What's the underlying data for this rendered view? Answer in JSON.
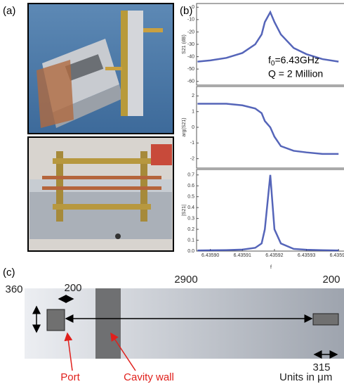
{
  "panel_a": {
    "label": "(a)"
  },
  "panel_b": {
    "label": "(b)",
    "annotation": {
      "base": "f",
      "sub": "0",
      "rest": "=6.43GHz"
    },
    "q_text": "Q = 2 Million",
    "xlabel": "f"
  },
  "chart_data": [
    {
      "type": "line",
      "ylabel": "S21 (dB)",
      "color": "#2a3fa8",
      "x": [
        6.435896,
        6.4359,
        6.435905,
        6.43591,
        6.435914,
        6.435916,
        6.435917,
        6.4359187,
        6.43592,
        6.435922,
        6.435926,
        6.43593,
        6.435935,
        6.43594
      ],
      "values": [
        -44,
        -43,
        -41,
        -37,
        -30,
        -22,
        -12,
        -4,
        -12,
        -22,
        -33,
        -38,
        -42,
        -44
      ],
      "xlim": [
        6.4358957,
        6.4359417
      ],
      "ylim": [
        -63,
        3
      ],
      "yticks": [
        0,
        -10,
        -20,
        -30,
        -40,
        -50,
        -60
      ]
    },
    {
      "type": "line",
      "ylabel": "arg(S21)",
      "color": "#2a3fa8",
      "x": [
        6.435896,
        6.4359,
        6.435905,
        6.43591,
        6.435914,
        6.435916,
        6.435917,
        6.4359187,
        6.43592,
        6.435922,
        6.435926,
        6.43593,
        6.435935,
        6.43594
      ],
      "values": [
        1.5,
        1.5,
        1.5,
        1.4,
        1.2,
        0.9,
        0.4,
        0,
        -0.6,
        -1.2,
        -1.5,
        -1.6,
        -1.7,
        -1.7
      ],
      "xlim": [
        6.4358957,
        6.4359417
      ],
      "ylim": [
        -2.6,
        2.6
      ],
      "yticks": [
        2,
        1,
        0,
        -1,
        -2
      ]
    },
    {
      "type": "line",
      "ylabel": "|S21|",
      "color": "#2a3fa8",
      "x": [
        6.435896,
        6.4359,
        6.435905,
        6.43591,
        6.435914,
        6.435916,
        6.435917,
        6.4359187,
        6.43592,
        6.435922,
        6.435926,
        6.43593,
        6.435935,
        6.43594
      ],
      "values": [
        0.006,
        0.007,
        0.009,
        0.014,
        0.03,
        0.07,
        0.2,
        0.7,
        0.2,
        0.07,
        0.02,
        0.012,
        0.008,
        0.006
      ],
      "xlim": [
        6.4358957,
        6.4359417
      ],
      "ylim": [
        0,
        0.75
      ],
      "yticks": [
        0.7,
        0.6,
        0.5,
        0.4,
        0.3,
        0.2,
        0.1,
        {
          "value": 0,
          "label": "0.0"
        }
      ],
      "xticks": [
        {
          "value": 6.4359,
          "label": "6.43590"
        },
        6.43591,
        6.43592,
        6.43593,
        6.43594
      ]
    }
  ],
  "panel_c": {
    "label": "(c)",
    "port_width": "200",
    "port_height": "360",
    "length": "2900",
    "right_width": "200",
    "right_depth": "315",
    "port": "Port",
    "cavity_wall": "Cavity wall",
    "units": "Units in μm"
  }
}
